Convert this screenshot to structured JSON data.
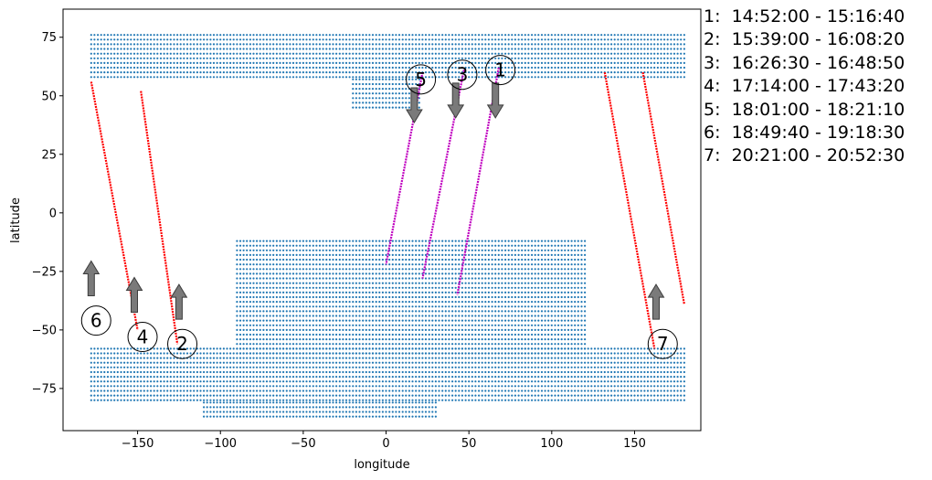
{
  "chart_data": {
    "type": "scatter",
    "title": "",
    "xlabel": "longitude",
    "ylabel": "latitude",
    "xlim": [
      -195,
      190
    ],
    "ylim": [
      -93,
      87
    ],
    "xticks": [
      -150,
      -100,
      -50,
      0,
      50,
      100,
      150
    ],
    "yticks": [
      -75,
      -50,
      -25,
      0,
      25,
      50,
      75
    ],
    "grid": false,
    "colors": {
      "coverage": "#1f77b4",
      "pass_red": "#ff0000",
      "pass_magenta": "#bf00bf",
      "arrow_fill": "#7a7a7a",
      "arrow_edge": "#3c3c3c"
    },
    "coverage_regions": [
      {
        "lat_min": 58,
        "lat_max": 77,
        "lon_min": -178,
        "lon_max": 180
      },
      {
        "lat_min": 45,
        "lat_max": 58,
        "lon_min": -20,
        "lon_max": 20
      },
      {
        "lat_min": -60,
        "lat_max": -12,
        "lon_min": -90,
        "lon_max": 120
      },
      {
        "lat_min": -80,
        "lat_max": -58,
        "lon_min": -178,
        "lon_max": 180
      },
      {
        "lat_min": -87,
        "lat_max": -80,
        "lon_min": -110,
        "lon_max": 30
      }
    ],
    "passes": [
      {
        "label": "1",
        "color": "magenta",
        "start": [
          68,
          62
        ],
        "end": [
          43,
          -35
        ],
        "direction": "down",
        "marker": [
          69,
          61
        ],
        "time": "14:52:00 - 15:16:40"
      },
      {
        "label": "2",
        "color": "red",
        "start": [
          -148,
          52
        ],
        "end": [
          -126,
          -56
        ],
        "direction": "up",
        "marker": [
          -123,
          -56
        ],
        "time": "15:39:00 - 16:08:20"
      },
      {
        "label": "3",
        "color": "magenta",
        "start": [
          47,
          61
        ],
        "end": [
          22,
          -28
        ],
        "direction": "down",
        "marker": [
          46,
          59
        ],
        "time": "16:26:30 - 16:48:50"
      },
      {
        "label": "4",
        "color": "red",
        "start": [
          -178,
          56
        ],
        "end": [
          -150,
          -50
        ],
        "direction": "up",
        "marker": [
          -147,
          -53
        ],
        "time": "17:14:00 - 17:43:20"
      },
      {
        "label": "5",
        "color": "magenta",
        "start": [
          22,
          60
        ],
        "end": [
          0,
          -22
        ],
        "direction": "down",
        "marker": [
          21,
          57
        ],
        "time": "18:01:00 - 18:21:10"
      },
      {
        "label": "6",
        "color": "red",
        "start": [
          132,
          60
        ],
        "end": [
          162,
          -58
        ],
        "direction": "up",
        "marker": [
          -175,
          -46
        ],
        "time": "18:49:40 - 19:18:30"
      },
      {
        "label": "7",
        "color": "red",
        "start": [
          155,
          60
        ],
        "end": [
          180,
          -39
        ],
        "direction": "up",
        "marker": [
          167,
          -56
        ],
        "time": "20:21:00 - 20:52:30"
      }
    ],
    "arrows": [
      {
        "x": 66,
        "y": 48,
        "direction": "down"
      },
      {
        "x": 42,
        "y": 48,
        "direction": "down"
      },
      {
        "x": 17,
        "y": 46,
        "direction": "down"
      },
      {
        "x": -125,
        "y": -38,
        "direction": "up"
      },
      {
        "x": -152,
        "y": -35,
        "direction": "up"
      },
      {
        "x": -178,
        "y": -28,
        "direction": "up"
      },
      {
        "x": 163,
        "y": -38,
        "direction": "up"
      }
    ],
    "legend": [
      {
        "label": "1",
        "time": "14:52:00 - 15:16:40"
      },
      {
        "label": "2",
        "time": "15:39:00 - 16:08:20"
      },
      {
        "label": "3",
        "time": "16:26:30 - 16:48:50"
      },
      {
        "label": "4",
        "time": "17:14:00 - 17:43:20"
      },
      {
        "label": "5",
        "time": "18:01:00 - 18:21:10"
      },
      {
        "label": "6",
        "time": "18:49:40 - 19:18:30"
      },
      {
        "label": "7",
        "time": "20:21:00 - 20:52:30"
      }
    ],
    "legend_placement": "right, outside plot"
  },
  "legend_text": [
    "1:  14:52:00 - 15:16:40",
    "2:  15:39:00 - 16:08:20",
    "3:  16:26:30 - 16:48:50",
    "4:  17:14:00 - 17:43:20",
    "5:  18:01:00 - 18:21:10",
    "6:  18:49:40 - 19:18:30",
    "7:  20:21:00 - 20:52:30"
  ]
}
